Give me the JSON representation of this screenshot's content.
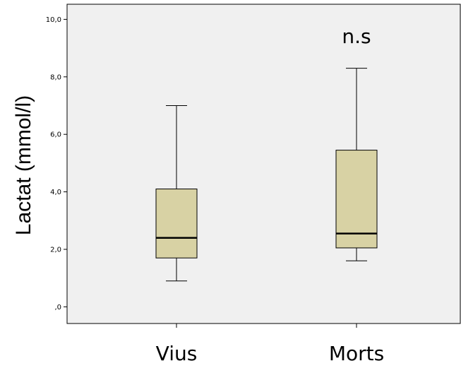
{
  "chart_data": {
    "type": "box",
    "title": "",
    "xlabel": "",
    "ylabel": "Lactat (mmol/l)",
    "ylim": [
      -0.2,
      10.2
    ],
    "yticks": [
      0,
      2,
      4,
      6,
      8,
      10
    ],
    "ytick_labels": [
      ",0",
      "2,0",
      "4,0",
      "6,0",
      "8,0",
      "10,0"
    ],
    "categories": [
      "Vius",
      "Morts"
    ],
    "boxes": [
      {
        "category": "Vius",
        "whisker_low": 0.9,
        "q1": 1.7,
        "median": 2.4,
        "q3": 4.1,
        "whisker_high": 7.0
      },
      {
        "category": "Morts",
        "whisker_low": 1.6,
        "q1": 2.05,
        "median": 2.55,
        "q3": 5.45,
        "whisker_high": 8.3
      }
    ],
    "annotations": [
      {
        "text": "n.s",
        "category": "Morts"
      }
    ],
    "grid": false,
    "colors": {
      "plot_bg": "#f0f0f0",
      "box_fill": "#d8d2a4",
      "line": "#000000"
    }
  }
}
